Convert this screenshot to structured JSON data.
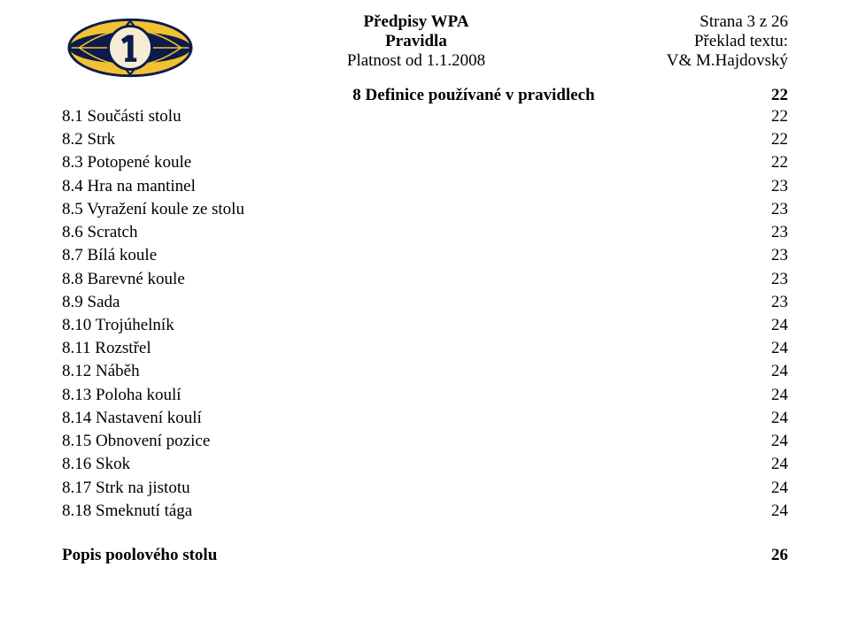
{
  "header": {
    "center": {
      "line1": "Předpisy WPA",
      "line2": "Pravidla",
      "line3": "Platnost od 1.1.2008"
    },
    "right": {
      "line1": "Strana 3 z 26",
      "line2": "Překlad textu:",
      "line3": "V& M.Hajdovský"
    }
  },
  "section": {
    "title": "8 Definice používané v pravidlech",
    "page": "22"
  },
  "toc": [
    {
      "label": "8.1 Součásti stolu",
      "page": "22"
    },
    {
      "label": "8.2 Strk",
      "page": "22"
    },
    {
      "label": "8.3 Potopené koule",
      "page": "22"
    },
    {
      "label": "8.4 Hra na mantinel",
      "page": "23"
    },
    {
      "label": "8.5 Vyražení koule ze stolu",
      "page": "23"
    },
    {
      "label": "8.6 Scratch",
      "page": "23"
    },
    {
      "label": "8.7 Bílá koule",
      "page": "23"
    },
    {
      "label": "8.8 Barevné koule",
      "page": "23"
    },
    {
      "label": "8.9 Sada",
      "page": "23"
    },
    {
      "label": "8.10 Trojúhelník",
      "page": "24"
    },
    {
      "label": "8.11 Rozstřel",
      "page": "24"
    },
    {
      "label": "8.12 Náběh",
      "page": "24"
    },
    {
      "label": "8.13 Poloha koulí",
      "page": "24"
    },
    {
      "label": "8.14 Nastavení koulí",
      "page": "24"
    },
    {
      "label": "8.15 Obnovení pozice",
      "page": "24"
    },
    {
      "label": "8.16 Skok",
      "page": "24"
    },
    {
      "label": "8.17 Strk na jistotu",
      "page": "24"
    },
    {
      "label": "8.18 Smeknutí tága",
      "page": "24"
    }
  ],
  "footer": {
    "label": "Popis poolového stolu",
    "page": "26"
  },
  "style": {
    "text_color": "#000000",
    "bg_color": "#ffffff",
    "font_family": "Times New Roman",
    "fontsize_pt": 14,
    "logo": {
      "outer_ellipse_fill": "#f2c232",
      "outer_ellipse_stroke": "#0d1b4c",
      "band_fill": "#0d1b4c",
      "band_line": "#f2c232",
      "inner_circle_fill": "#f5ecd5",
      "inner_circle_stroke": "#0d1b4c",
      "one_ball_fill": "#0d1b4c"
    }
  }
}
